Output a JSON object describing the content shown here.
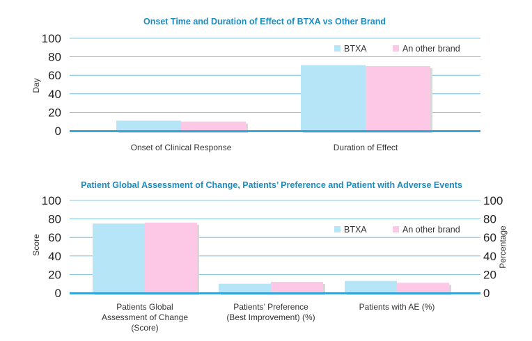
{
  "colors": {
    "btxa": "#b6e5f8",
    "other": "#fcc8e6",
    "grid": "#5bb7de",
    "axis": "#3aa6d6",
    "title": "#1b8cc0"
  },
  "chart_data": [
    {
      "type": "bar",
      "title": "Onset Time and Duration of Effect of BTXA vs Other Brand",
      "ylabel": "Day",
      "ylim": [
        0,
        100
      ],
      "yticks": [
        "0",
        "20",
        "40",
        "60",
        "80",
        "100"
      ],
      "categories": [
        {
          "lines": [
            "Onset of Clinical Response"
          ]
        },
        {
          "lines": [
            "Duration of Effect"
          ]
        }
      ],
      "series": [
        {
          "name": "BTXA",
          "values": [
            11,
            71
          ]
        },
        {
          "name": "An other brand",
          "values": [
            10,
            70
          ]
        }
      ],
      "grid": true,
      "legend": "top-right"
    },
    {
      "type": "bar",
      "title": "Patient Global Assessment of Change, Patients’ Preference and Patient with Adverse Events",
      "ylabel": "Score",
      "y2label": "Percentage",
      "ylim": [
        0,
        100
      ],
      "yticks": [
        "0",
        "20",
        "40",
        "60",
        "80",
        "100"
      ],
      "categories": [
        {
          "lines": [
            "Patients Global",
            "Assessment of Change",
            "(Score)"
          ]
        },
        {
          "lines": [
            "Patients’ Preference",
            "(Best Improvement) (%)"
          ]
        },
        {
          "lines": [
            "Patients with AE (%)"
          ]
        }
      ],
      "series": [
        {
          "name": "BTXA",
          "values": [
            75,
            10,
            13
          ]
        },
        {
          "name": "An other brand",
          "values": [
            76,
            12,
            11
          ]
        }
      ],
      "grid": true,
      "legend": "top-right"
    }
  ]
}
